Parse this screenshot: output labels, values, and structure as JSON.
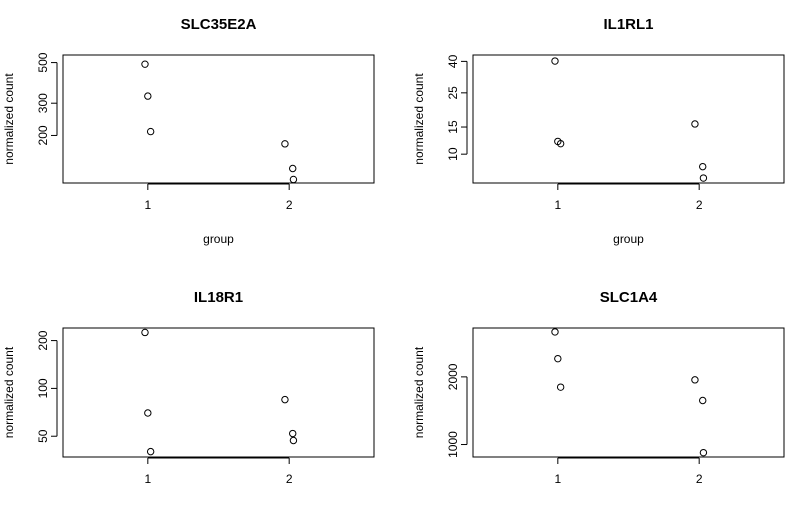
{
  "chart_data": [
    {
      "type": "scatter",
      "title": "SLC35E2A",
      "xlabel": "group",
      "ylabel": "normalized count",
      "y_scale": "log",
      "ylim": [
        110,
        550
      ],
      "xlim": [
        0.4,
        2.6
      ],
      "x_ticks": [
        1,
        2
      ],
      "y_ticks": [
        200,
        300,
        500
      ],
      "points": [
        {
          "x": 1,
          "y": 490
        },
        {
          "x": 1,
          "y": 328
        },
        {
          "x": 1,
          "y": 210
        },
        {
          "x": 2,
          "y": 180
        },
        {
          "x": 2,
          "y": 132
        },
        {
          "x": 2,
          "y": 115
        }
      ]
    },
    {
      "type": "scatter",
      "title": "IL1RL1",
      "xlabel": "group",
      "ylabel": "normalized count",
      "y_scale": "log",
      "ylim": [
        6.5,
        44
      ],
      "xlim": [
        0.4,
        2.6
      ],
      "x_ticks": [
        1,
        2
      ],
      "y_ticks": [
        10,
        15,
        25,
        40
      ],
      "points": [
        {
          "x": 1,
          "y": 40.2
        },
        {
          "x": 1,
          "y": 12.1
        },
        {
          "x": 1,
          "y": 11.7
        },
        {
          "x": 2,
          "y": 15.7
        },
        {
          "x": 2,
          "y": 8.3
        },
        {
          "x": 2,
          "y": 7.0
        }
      ]
    },
    {
      "type": "scatter",
      "title": "IL18R1",
      "xlabel": "",
      "ylabel": "normalized count",
      "y_scale": "log",
      "ylim": [
        37,
        240
      ],
      "xlim": [
        0.4,
        2.6
      ],
      "x_ticks": [
        1,
        2
      ],
      "y_ticks": [
        50,
        100,
        200
      ],
      "points": [
        {
          "x": 1,
          "y": 225
        },
        {
          "x": 1,
          "y": 70
        },
        {
          "x": 1,
          "y": 40
        },
        {
          "x": 2,
          "y": 85
        },
        {
          "x": 2,
          "y": 52
        },
        {
          "x": 2,
          "y": 47
        }
      ]
    },
    {
      "type": "scatter",
      "title": "SLC1A4",
      "xlabel": "",
      "ylabel": "normalized count",
      "y_scale": "log",
      "ylim": [
        880,
        3300
      ],
      "xlim": [
        0.4,
        2.6
      ],
      "x_ticks": [
        1,
        2
      ],
      "y_ticks": [
        1000,
        2000
      ],
      "points": [
        {
          "x": 1,
          "y": 3170
        },
        {
          "x": 1,
          "y": 2410
        },
        {
          "x": 1,
          "y": 1800
        },
        {
          "x": 2,
          "y": 1940
        },
        {
          "x": 2,
          "y": 1570
        },
        {
          "x": 2,
          "y": 920
        }
      ]
    }
  ]
}
